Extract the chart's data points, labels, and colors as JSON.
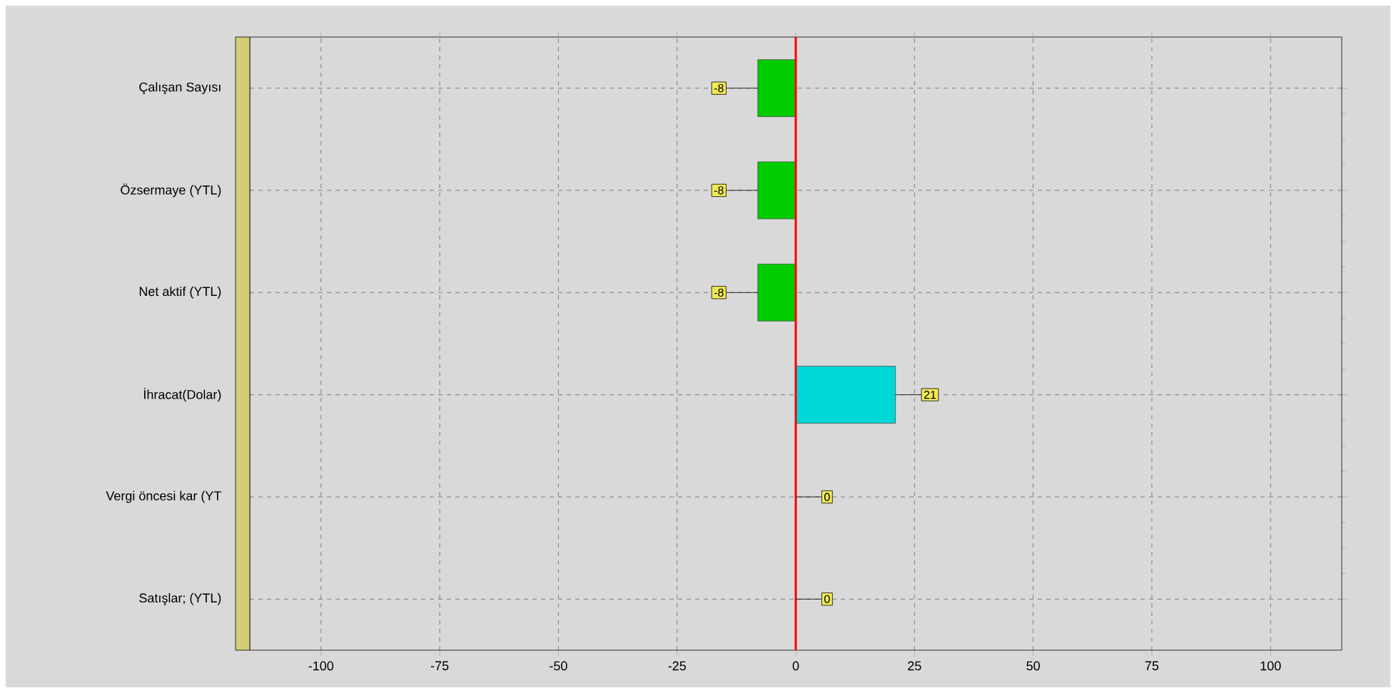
{
  "chart_data": {
    "type": "bar",
    "orientation": "horizontal",
    "categories": [
      "Çalışan Sayısı",
      "Özsermaye (YTL)",
      "Net aktif (YTL)",
      "İhracat(Dolar)",
      "Vergi öncesi kar (YT",
      "Satışlar; (YTL)"
    ],
    "values": [
      -8,
      -8,
      -8,
      21,
      0,
      0
    ],
    "colors": [
      "#00cc00",
      "#00cc00",
      "#00cc00",
      "#00d8d8",
      "#0a5a5a",
      "#0a5a5a"
    ],
    "xlim": [
      -115,
      115
    ],
    "xticks": [
      -100,
      -75,
      -50,
      -25,
      0,
      25,
      50,
      75,
      100
    ],
    "grid": true,
    "data_labels": true,
    "ref_lines": [
      {
        "axis": "x",
        "value": 0,
        "color": "#ff0000"
      }
    ]
  }
}
